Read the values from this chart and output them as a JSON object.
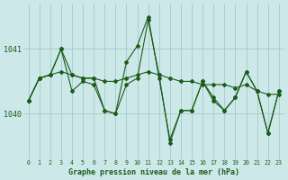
{
  "title": "Graphe pression niveau de la mer (hPa)",
  "background_color": "#cde8e8",
  "grid_color": "#aacece",
  "line_color": "#1a5c1a",
  "xlim": [
    -0.5,
    23.5
  ],
  "ylim": [
    1039.3,
    1041.7
  ],
  "yticks": [
    1040,
    1041
  ],
  "xticks": [
    0,
    1,
    2,
    3,
    4,
    5,
    6,
    7,
    8,
    9,
    10,
    11,
    12,
    13,
    14,
    15,
    16,
    17,
    18,
    19,
    20,
    21,
    22,
    23
  ],
  "line1": [
    1040.2,
    1040.55,
    1040.6,
    1040.65,
    1040.6,
    1040.55,
    1040.55,
    1040.5,
    1040.5,
    1040.55,
    1040.6,
    1040.65,
    1040.6,
    1040.55,
    1040.5,
    1040.5,
    1040.45,
    1040.45,
    1040.45,
    1040.4,
    1040.45,
    1040.35,
    1040.3,
    1040.3
  ],
  "line2": [
    1040.2,
    1040.55,
    1040.6,
    1041.0,
    1040.35,
    1040.5,
    1040.45,
    1040.05,
    1040.0,
    1040.45,
    1040.55,
    1041.45,
    1040.6,
    1039.55,
    1040.05,
    1040.05,
    1040.5,
    1040.2,
    1040.05,
    1040.25,
    1040.65,
    1040.35,
    1039.7,
    1040.35
  ],
  "line3": [
    1040.2,
    1040.55,
    1040.6,
    1041.0,
    1040.6,
    1040.55,
    1040.55,
    1040.05,
    1040.0,
    1040.8,
    1041.05,
    1041.5,
    1040.55,
    1039.6,
    1040.05,
    1040.05,
    1040.5,
    1040.25,
    1040.05,
    1040.25,
    1040.65,
    1040.35,
    1039.7,
    1040.35
  ]
}
